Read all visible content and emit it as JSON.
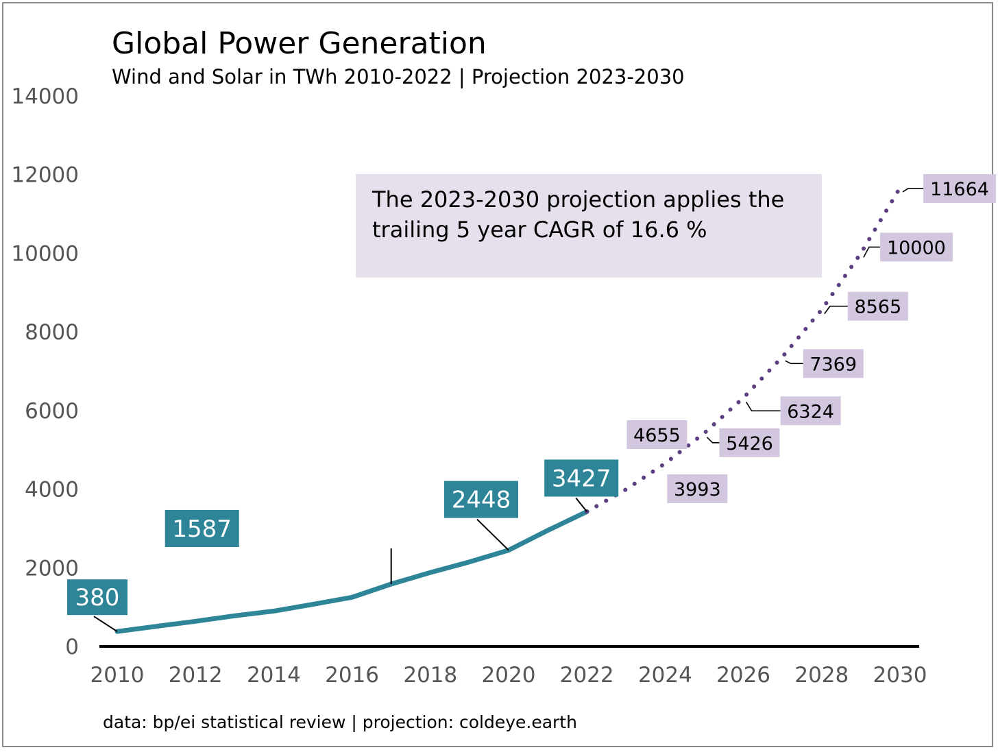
{
  "chart_data": {
    "type": "line",
    "title": "Global Power Generation",
    "subtitle": "Wind and Solar in TWh 2010-2022 | Projection 2023-2030",
    "source": "data: bp/ei statistical review | projection: coldeye.earth",
    "note": [
      "The 2023-2030 projection applies the",
      "trailing 5 year CAGR of 16.6 %"
    ],
    "ylim": [
      0,
      14000
    ],
    "xlim": [
      2010,
      2030
    ],
    "yticks": [
      "0",
      "2000",
      "4000",
      "6000",
      "8000",
      "10000",
      "12000",
      "14000"
    ],
    "xticks": [
      "2010",
      "2012",
      "2014",
      "2016",
      "2018",
      "2020",
      "2022",
      "2024",
      "2026",
      "2028",
      "2030"
    ],
    "grid": false,
    "series": [
      {
        "style": "solid",
        "color": "#2e8597",
        "x": [
          2010,
          2011,
          2012,
          2013,
          2014,
          2015,
          2016,
          2017,
          2018,
          2019,
          2020,
          2021,
          2022
        ],
        "y": [
          380,
          510,
          640,
          780,
          900,
          1070,
          1250,
          1587,
          1880,
          2150,
          2448,
          2950,
          3427
        ]
      },
      {
        "style": "dotted",
        "color": "#5c3f80",
        "x": [
          2022,
          2023,
          2024,
          2025,
          2026,
          2027,
          2028,
          2029,
          2030
        ],
        "y": [
          3427,
          3993,
          4655,
          5426,
          6324,
          7369,
          8565,
          10000,
          11664
        ]
      }
    ],
    "labels_hist": [
      {
        "x": 2010,
        "y": 380,
        "text": "380"
      },
      {
        "x": 2017,
        "y": 1587,
        "text": "1587"
      },
      {
        "x": 2020,
        "y": 2448,
        "text": "2448"
      },
      {
        "x": 2022,
        "y": 3427,
        "text": "3427"
      }
    ],
    "labels_proj": [
      {
        "x": 2023,
        "y": 3993,
        "text": "3993"
      },
      {
        "x": 2024,
        "y": 4655,
        "text": "4655"
      },
      {
        "x": 2025,
        "y": 5426,
        "text": "5426"
      },
      {
        "x": 2026,
        "y": 6324,
        "text": "6324"
      },
      {
        "x": 2027,
        "y": 7369,
        "text": "7369"
      },
      {
        "x": 2028,
        "y": 8565,
        "text": "8565"
      },
      {
        "x": 2029,
        "y": 10000,
        "text": "10000"
      },
      {
        "x": 2030,
        "y": 11664,
        "text": "11664"
      }
    ],
    "colors": {
      "historical": "#2e8597",
      "projection": "#5c3f80",
      "label_hist_bg": "#2e8597",
      "label_proj_bg": "#d3c7e0",
      "note_bg": "#e6e0ed",
      "axis": "#000000"
    }
  }
}
